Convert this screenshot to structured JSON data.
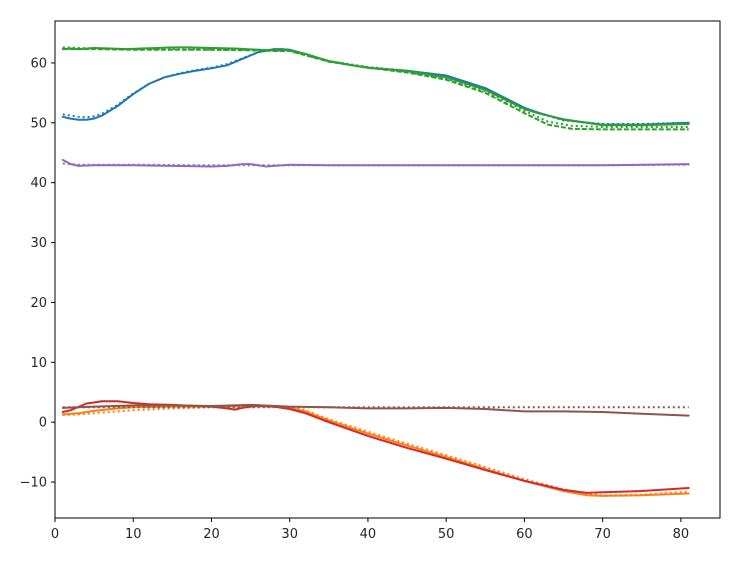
{
  "chart_data": {
    "type": "line",
    "title": "",
    "xlabel": "",
    "ylabel": "",
    "xlim": [
      0,
      85
    ],
    "ylim": [
      -16,
      67
    ],
    "x_ticks": [
      0,
      10,
      20,
      30,
      40,
      50,
      60,
      70,
      80
    ],
    "y_ticks": [
      -10,
      0,
      10,
      20,
      30,
      40,
      50,
      60
    ],
    "x_tick_labels": [
      "0",
      "10",
      "20",
      "30",
      "40",
      "50",
      "60",
      "70",
      "80"
    ],
    "y_tick_labels": [
      "−10",
      "0",
      "10",
      "20",
      "30",
      "40",
      "50",
      "60"
    ],
    "grid": false,
    "series": [
      {
        "color": "#1f77b4",
        "style": "solid",
        "x": [
          1,
          2,
          3,
          4,
          5,
          6,
          8,
          10,
          12,
          14,
          16,
          18,
          20,
          22,
          24,
          26,
          28,
          29,
          30,
          32,
          35,
          38,
          40,
          45,
          50,
          55,
          60,
          62,
          65,
          70,
          75,
          81
        ],
        "y": [
          51,
          50.7,
          50.5,
          50.5,
          50.7,
          51.2,
          52.8,
          54.8,
          56.5,
          57.6,
          58.2,
          58.7,
          59.1,
          59.6,
          60.7,
          61.8,
          62.3,
          62.3,
          62.2,
          61.5,
          60.3,
          59.6,
          59.2,
          58.7,
          57.9,
          55.8,
          52.5,
          51.6,
          50.5,
          49.7,
          49.7,
          50
        ]
      },
      {
        "color": "#1f77b4",
        "style": "dotted",
        "x": [
          1,
          2,
          3,
          4,
          5,
          6,
          8,
          10,
          12,
          14,
          16,
          18,
          20,
          22,
          24,
          26,
          28,
          30,
          35,
          40,
          45,
          50,
          55,
          60,
          65,
          70,
          75,
          81
        ],
        "y": [
          51.4,
          51.2,
          51,
          50.9,
          51.1,
          51.5,
          53,
          54.9,
          56.5,
          57.6,
          58.3,
          58.8,
          59.2,
          59.8,
          60.8,
          61.8,
          62.2,
          62.1,
          60.3,
          59.3,
          58.7,
          57.8,
          55.6,
          52.3,
          50.4,
          49.8,
          49.8,
          50
        ]
      },
      {
        "color": "#2ca02c",
        "style": "solid",
        "x": [
          1,
          2,
          3,
          5,
          7,
          9,
          11,
          13,
          15,
          17,
          20,
          23,
          26,
          28,
          29,
          30,
          32,
          35,
          38,
          40,
          45,
          50,
          55,
          60,
          62,
          65,
          70,
          75,
          81
        ],
        "y": [
          62.3,
          62.4,
          62.3,
          62.5,
          62.4,
          62.3,
          62.4,
          62.5,
          62.6,
          62.6,
          62.5,
          62.4,
          62.2,
          62.1,
          62.2,
          62.1,
          61.5,
          60.3,
          59.6,
          59.2,
          58.6,
          57.6,
          55.5,
          52.3,
          51.5,
          50.6,
          49.6,
          49.6,
          49.8
        ]
      },
      {
        "color": "#2ca02c",
        "style": "dotted",
        "x": [
          1,
          5,
          10,
          15,
          20,
          25,
          28,
          30,
          35,
          40,
          45,
          50,
          55,
          60,
          63,
          66,
          70,
          75,
          81
        ],
        "y": [
          62.6,
          62.4,
          62.3,
          62.3,
          62.2,
          62.2,
          62.1,
          62,
          60.3,
          59.3,
          58.5,
          57.4,
          55.3,
          52,
          50.2,
          49.5,
          49.3,
          49.3,
          49.3
        ]
      },
      {
        "color": "#2ca02c",
        "style": "dashed",
        "x": [
          1,
          5,
          10,
          15,
          20,
          25,
          28,
          30,
          35,
          40,
          45,
          50,
          55,
          60,
          63,
          66,
          70,
          75,
          81
        ],
        "y": [
          62.3,
          62.3,
          62.2,
          62.2,
          62.2,
          62.1,
          62,
          62,
          60.2,
          59.2,
          58.4,
          57.2,
          55,
          51.6,
          49.7,
          49,
          48.9,
          48.9,
          48.9
        ]
      },
      {
        "color": "#9467bd",
        "style": "solid",
        "x": [
          1,
          2,
          3,
          5,
          10,
          15,
          20,
          22,
          24,
          25,
          26,
          27,
          28,
          30,
          35,
          40,
          50,
          60,
          70,
          81
        ],
        "y": [
          43.8,
          43.1,
          42.8,
          42.9,
          42.9,
          42.8,
          42.7,
          42.8,
          43.1,
          43.1,
          42.9,
          42.7,
          42.8,
          43,
          42.9,
          42.9,
          42.9,
          42.9,
          42.9,
          43.1
        ]
      },
      {
        "color": "#9467bd",
        "style": "dotted",
        "x": [
          1,
          3,
          10,
          20,
          30,
          40,
          50,
          60,
          70,
          81
        ],
        "y": [
          43.2,
          43,
          43,
          42.9,
          42.9,
          42.9,
          42.9,
          42.9,
          42.9,
          43
        ]
      },
      {
        "color": "#ff7f0e",
        "style": "solid",
        "x": [
          1,
          3,
          5,
          8,
          10,
          15,
          20,
          25,
          28,
          30,
          32,
          35,
          40,
          45,
          50,
          55,
          60,
          65,
          68,
          70,
          75,
          81
        ],
        "y": [
          1.3,
          1.5,
          1.9,
          2.3,
          2.5,
          2.6,
          2.6,
          2.7,
          2.6,
          2.4,
          1.8,
          0.3,
          -1.9,
          -3.9,
          -5.8,
          -7.8,
          -9.8,
          -11.5,
          -12.2,
          -12.3,
          -12.2,
          -11.9
        ]
      },
      {
        "color": "#ff7f0e",
        "style": "dotted",
        "x": [
          1,
          3,
          5,
          8,
          10,
          15,
          20,
          25,
          28,
          30,
          32,
          35,
          40,
          45,
          50,
          55,
          60,
          65,
          68,
          70,
          75,
          81
        ],
        "y": [
          1.2,
          1.3,
          1.5,
          1.8,
          2,
          2.3,
          2.5,
          2.6,
          2.6,
          2.5,
          2,
          0.5,
          -1.6,
          -3.6,
          -5.5,
          -7.5,
          -9.5,
          -11.2,
          -12,
          -12.2,
          -12.1,
          -11.6
        ]
      },
      {
        "color": "#d62728",
        "style": "solid",
        "x": [
          1,
          2,
          4,
          6,
          8,
          10,
          12,
          15,
          20,
          22,
          23,
          24,
          25,
          26,
          28,
          30,
          32,
          35,
          40,
          45,
          50,
          55,
          60,
          65,
          68,
          70,
          75,
          81
        ],
        "y": [
          1.7,
          2,
          3.1,
          3.5,
          3.5,
          3.2,
          3,
          2.9,
          2.6,
          2.3,
          2.1,
          2.4,
          2.6,
          2.7,
          2.6,
          2.2,
          1.5,
          0,
          -2.3,
          -4.3,
          -6.1,
          -8,
          -9.8,
          -11.3,
          -11.8,
          -11.7,
          -11.5,
          -11
        ]
      },
      {
        "color": "#8c564b",
        "style": "solid",
        "x": [
          1,
          5,
          10,
          15,
          20,
          25,
          30,
          35,
          40,
          45,
          50,
          55,
          60,
          65,
          70,
          75,
          81
        ],
        "y": [
          2.4,
          2.6,
          2.8,
          2.8,
          2.7,
          2.9,
          2.6,
          2.5,
          2.3,
          2.3,
          2.4,
          2.2,
          1.8,
          1.8,
          1.7,
          1.4,
          1.1
        ]
      },
      {
        "color": "#8c564b",
        "style": "dotted",
        "x": [
          1,
          81
        ],
        "y": [
          2.5,
          2.5
        ]
      }
    ]
  }
}
